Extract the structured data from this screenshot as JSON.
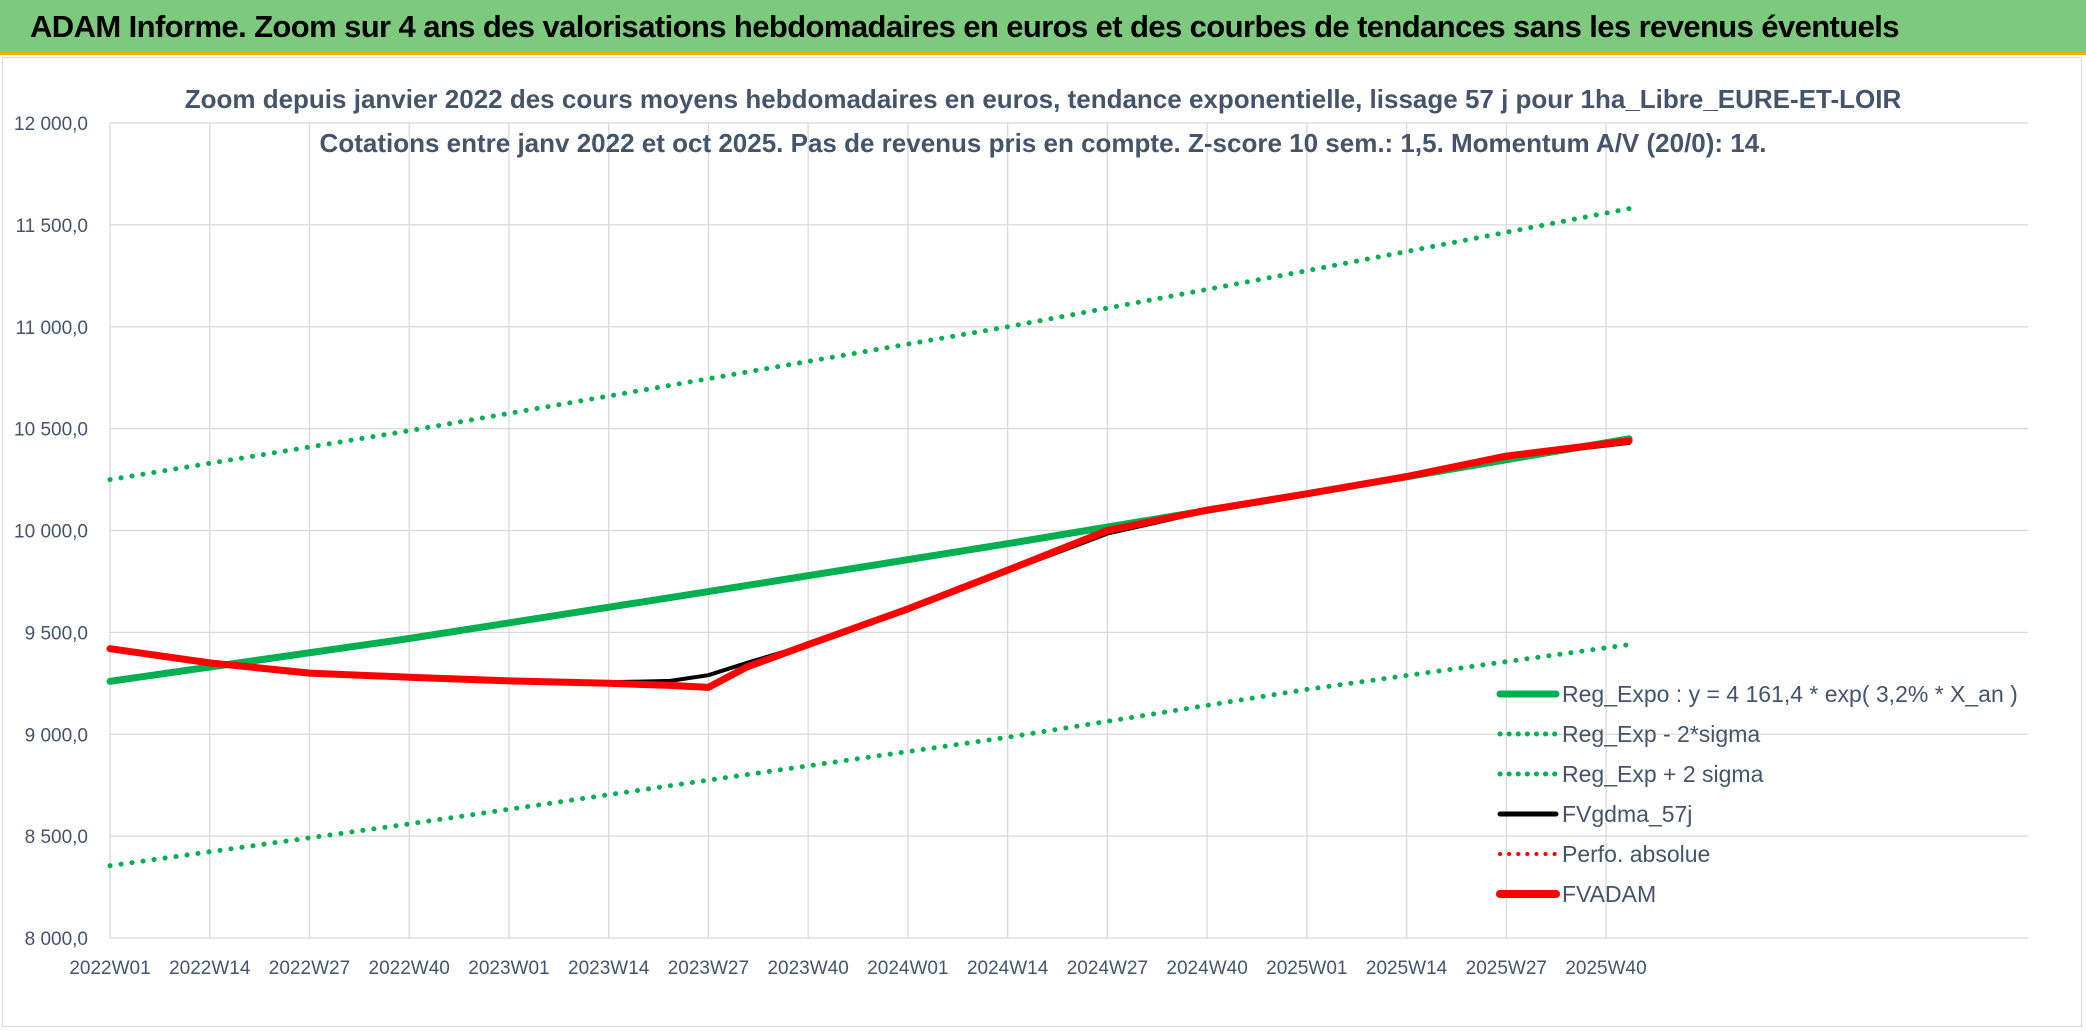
{
  "header": {
    "title": "ADAM Informe. Zoom sur 4 ans des valorisations hebdomadaires en euros et des courbes de tendances sans les revenus éventuels"
  },
  "chart_data": {
    "type": "line",
    "title": "Zoom depuis janvier 2022 des cours moyens hebdomadaires en euros, tendance exponentielle, lissage 57 j pour 1ha_Libre_EURE-ET-LOIR",
    "subtitle": "Cotations entre janv 2022 et oct 2025. Pas de revenus pris en compte. Z-score 10 sem.: 1,5. Momentum A/V (20/0): 14.",
    "xlabel": "",
    "ylabel": "",
    "ylim": [
      8000,
      12000
    ],
    "yticks": [
      "8 000,0",
      "8 500,0",
      "9 000,0",
      "9 500,0",
      "10 000,0",
      "10 500,0",
      "11 000,0",
      "11 500,0",
      "12 000,0"
    ],
    "xticks": [
      "2022W01",
      "2022W14",
      "2022W27",
      "2022W40",
      "2023W01",
      "2023W14",
      "2023W27",
      "2023W40",
      "2024W01",
      "2024W14",
      "2024W27",
      "2024W40",
      "2025W01",
      "2025W14",
      "2025W27",
      "2025W40"
    ],
    "grid": true,
    "legend_position": "bottom-right",
    "series": [
      {
        "name": "Reg_Expo : y = 4 161,4 * exp( 3,2% *  X_an )",
        "color": "#00b050",
        "style": "solid",
        "x": [
          "2022W01",
          "2022W40",
          "2023W27",
          "2024W14",
          "2025W01",
          "2025W43"
        ],
        "values": [
          9260,
          9470,
          9700,
          9935,
          10180,
          10450
        ]
      },
      {
        "name": "Reg_Exp - 2*sigma",
        "color": "#00b050",
        "style": "dotted",
        "x": [
          "2022W01",
          "2022W40",
          "2023W27",
          "2024W14",
          "2025W01",
          "2025W43"
        ],
        "values": [
          8355,
          8560,
          8775,
          8985,
          9220,
          9440
        ]
      },
      {
        "name": "Reg_Exp + 2 sigma",
        "color": "#00b050",
        "style": "dotted",
        "x": [
          "2022W01",
          "2022W40",
          "2023W27",
          "2024W14",
          "2025W01",
          "2025W43"
        ],
        "values": [
          10250,
          10490,
          10745,
          11000,
          11275,
          11580
        ]
      },
      {
        "name": "FVgdma_57j",
        "color": "#000000",
        "style": "solid",
        "x": [
          "2022W01",
          "2022W14",
          "2022W27",
          "2022W40",
          "2023W01",
          "2023W14",
          "2023W22",
          "2023W27",
          "2023W32",
          "2023W40",
          "2024W01",
          "2024W14",
          "2024W27",
          "2024W40",
          "2025W01",
          "2025W14",
          "2025W27",
          "2025W43"
        ],
        "values": [
          9420,
          9350,
          9300,
          9280,
          9262,
          9255,
          9262,
          9290,
          9350,
          9440,
          9610,
          9800,
          9985,
          10095,
          10175,
          10260,
          10360,
          10430
        ]
      },
      {
        "name": "Perfo. absolue",
        "color": "#ff0000",
        "style": "dotted",
        "x": [],
        "values": []
      },
      {
        "name": "FVADAM",
        "color": "#ff0000",
        "style": "solid",
        "x": [
          "2022W01",
          "2022W14",
          "2022W27",
          "2022W40",
          "2023W01",
          "2023W14",
          "2023W22",
          "2023W27",
          "2023W32",
          "2023W40",
          "2024W01",
          "2024W14",
          "2024W27",
          "2024W40",
          "2025W01",
          "2025W14",
          "2025W27",
          "2025W43"
        ],
        "values": [
          9420,
          9350,
          9300,
          9280,
          9262,
          9250,
          9240,
          9230,
          9330,
          9440,
          9615,
          9805,
          10000,
          10100,
          10180,
          10265,
          10365,
          10440
        ]
      }
    ]
  }
}
